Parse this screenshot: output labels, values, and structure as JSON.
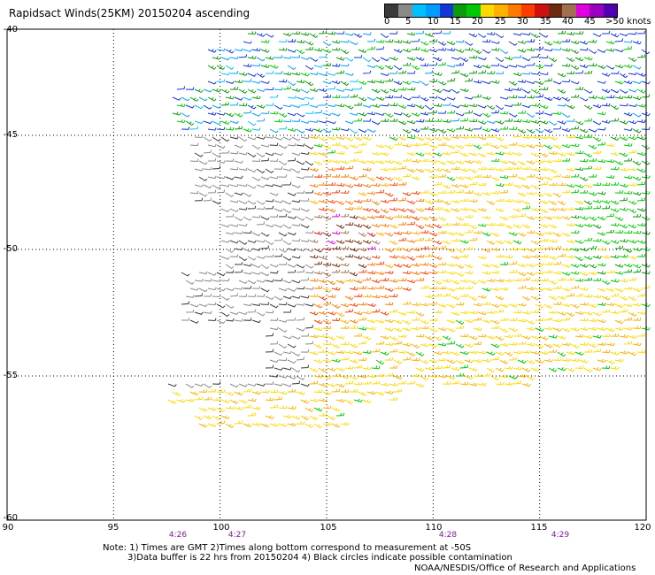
{
  "header": {
    "title": "Rapidsact Winds(25KM) 20150204 ascending"
  },
  "colorbar": {
    "colors": [
      "#3a3a3a",
      "#8a8a8a",
      "#00c0ff",
      "#009cff",
      "#1436d8",
      "#0a9a0a",
      "#00c800",
      "#ffd800",
      "#ffb000",
      "#ff7a00",
      "#ff3c00",
      "#d01010",
      "#6e2a10",
      "#a07050",
      "#e000e0",
      "#9a00c0",
      "#5000b0"
    ],
    "labels": [
      "0",
      "5",
      "10",
      "15",
      "20",
      "25",
      "30",
      "35",
      "40",
      "45",
      ">50 knots"
    ]
  },
  "map": {
    "lon_ticks": [
      "90",
      "95",
      "100",
      "105",
      "110",
      "115",
      "120"
    ],
    "lat_ticks": [
      "-40",
      "-45",
      "-50",
      "-55",
      "-60"
    ],
    "time_ticks": [
      "4:26",
      "4:27",
      "4:28",
      "4:29"
    ],
    "lon_range": [
      90,
      120
    ],
    "lat_range": [
      -60,
      -40
    ]
  },
  "notes": {
    "line1": "Note: 1) Times are GMT 2)Times along bottom correspond to measurement at -50S",
    "line2": "3)Data buffer is 22 hrs from 20150204 4) Black circles indicate possible contamination",
    "credit": "NOAA/NESDIS/Office of Research and Applications"
  }
}
